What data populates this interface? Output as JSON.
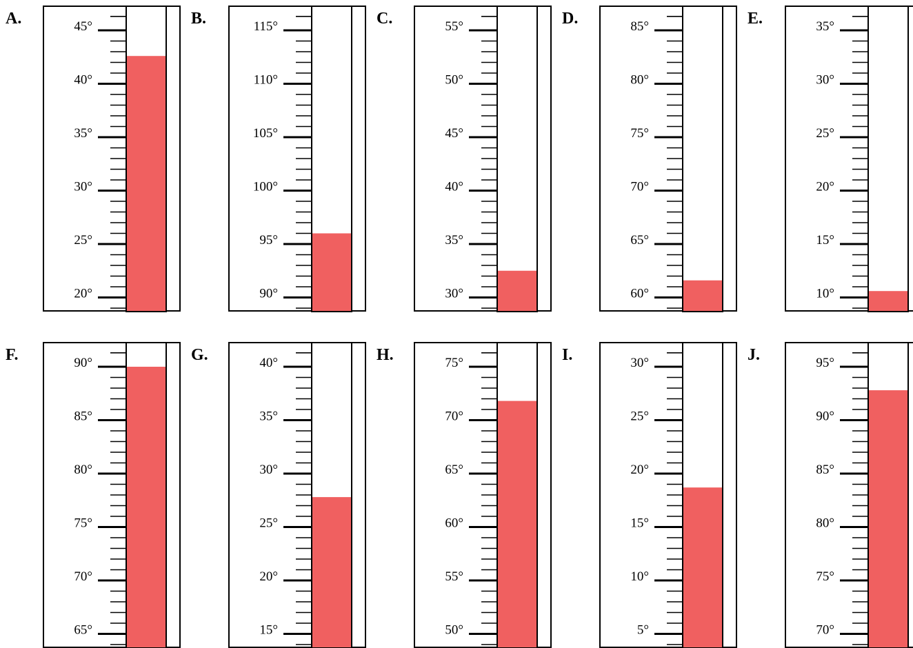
{
  "fill_color": "#f06060",
  "thermometers": [
    {
      "letter": "A.",
      "min_label": 20,
      "max_label": 45,
      "reading": 42.6
    },
    {
      "letter": "B.",
      "min_label": 90,
      "max_label": 115,
      "reading": 96.0
    },
    {
      "letter": "C.",
      "min_label": 30,
      "max_label": 55,
      "reading": 32.5
    },
    {
      "letter": "D.",
      "min_label": 60,
      "max_label": 85,
      "reading": 61.6
    },
    {
      "letter": "E.",
      "min_label": 10,
      "max_label": 35,
      "reading": 10.6
    },
    {
      "letter": "F.",
      "min_label": 65,
      "max_label": 90,
      "reading": 90.0
    },
    {
      "letter": "G.",
      "min_label": 15,
      "max_label": 40,
      "reading": 27.8
    },
    {
      "letter": "H.",
      "min_label": 50,
      "max_label": 75,
      "reading": 71.8
    },
    {
      "letter": "I.",
      "min_label": 5,
      "max_label": 30,
      "reading": 18.7
    },
    {
      "letter": "J.",
      "min_label": 70,
      "max_label": 95,
      "reading": 92.8
    }
  ]
}
